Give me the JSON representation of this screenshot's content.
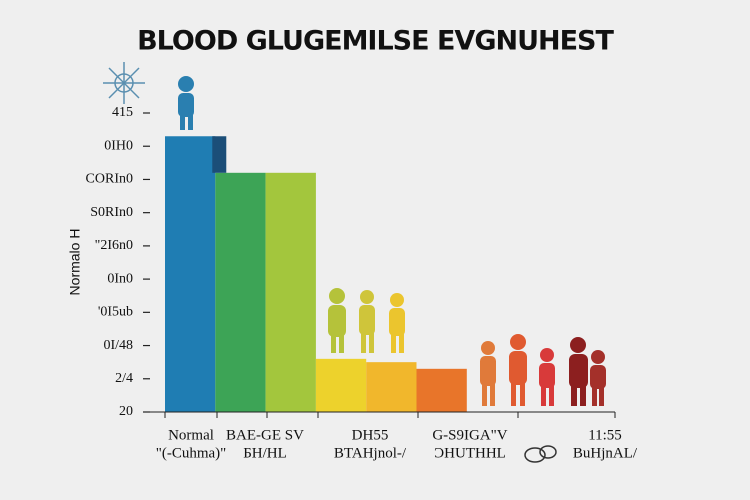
{
  "chart_data": {
    "type": "bar",
    "title": "BLOOD GLUGEMILSE EVGNUHEST",
    "ylabel": "Normalo H",
    "values": [
      8.3,
      7.2,
      7.2,
      1.6,
      1.5,
      1.3
    ],
    "colors": [
      "#1f7db3",
      "#3da456",
      "#a3c63d",
      "#edd22c",
      "#f1b72c",
      "#e8752a"
    ],
    "ylim": [
      0,
      9
    ],
    "yticks": [
      {
        "value": 0,
        "label": "20"
      },
      {
        "value": 1,
        "label": "2/4"
      },
      {
        "value": 2,
        "label": "0I/48"
      },
      {
        "value": 3,
        "label": "'0I5ub"
      },
      {
        "value": 4,
        "label": "0In0"
      },
      {
        "value": 5,
        "label": "\"2I6n0"
      },
      {
        "value": 6,
        "label": "S0RIn0"
      },
      {
        "value": 7,
        "label": "CORIn0"
      },
      {
        "value": 8,
        "label": "0IH0"
      },
      {
        "value": 9,
        "label": "415"
      }
    ],
    "x_group_labels": [
      [
        "Normal",
        "\"(-Cuhma)\""
      ],
      [
        "BAE-GE SV",
        "ƂH/HL"
      ],
      [
        "DH55",
        "BTAHjnol-/"
      ],
      [
        "G-S9IGA\"V",
        "ƆHUTHHL"
      ],
      [
        "11:55",
        "BuHjnAL/"
      ]
    ]
  }
}
